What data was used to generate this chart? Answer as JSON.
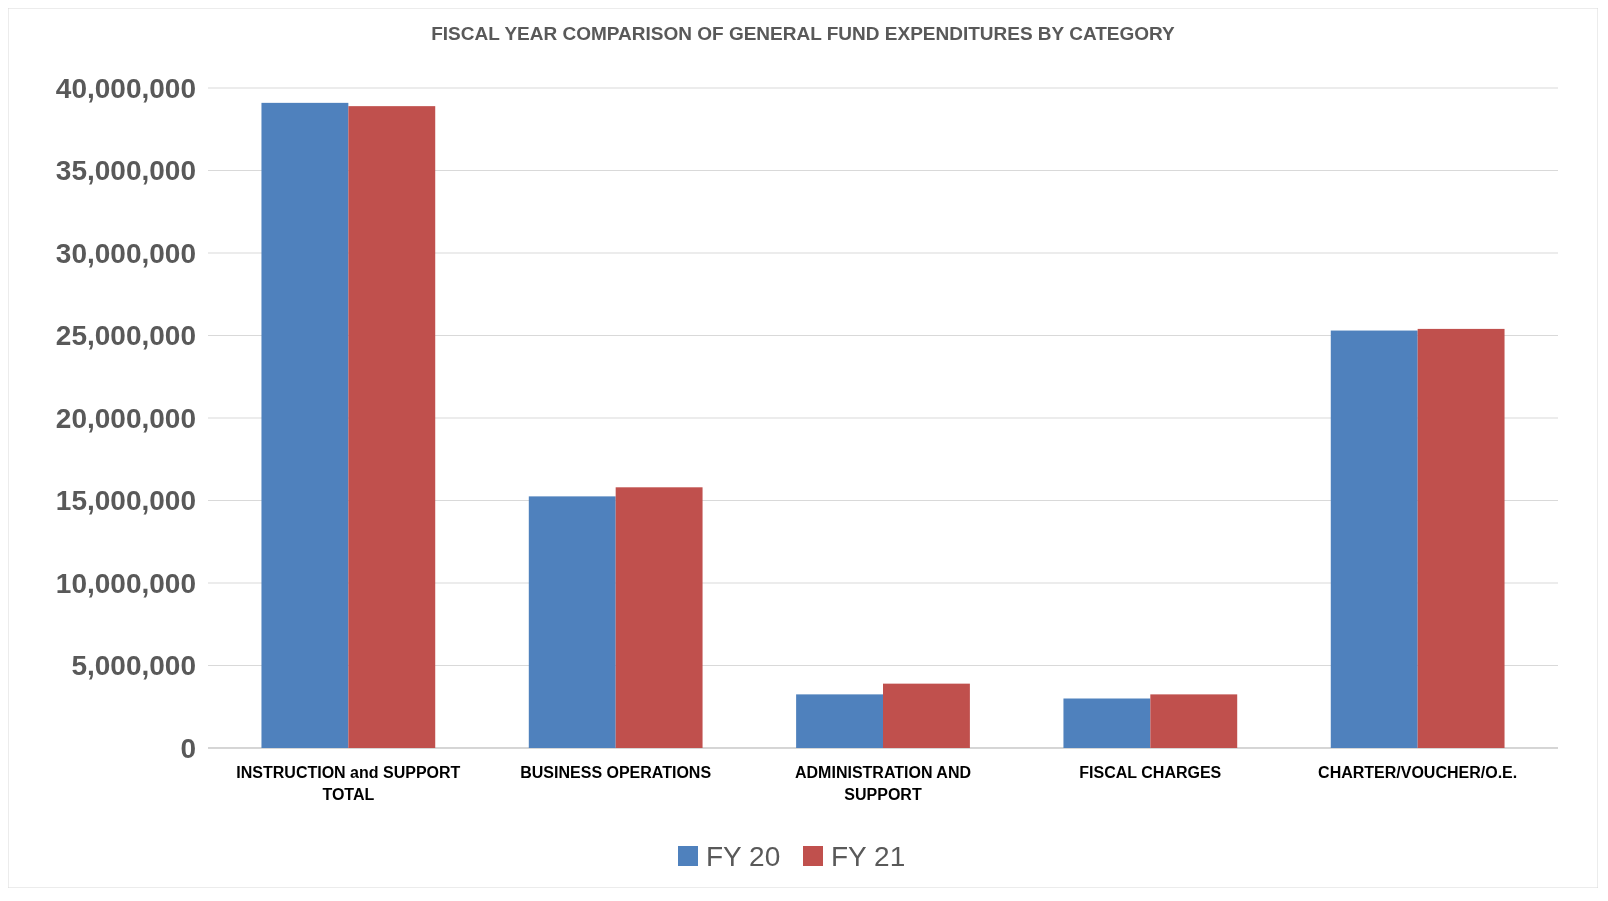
{
  "chart_data": {
    "type": "bar",
    "title": "FISCAL YEAR COMPARISON OF GENERAL FUND EXPENDITURES BY CATEGORY",
    "categories": [
      "INSTRUCTION and SUPPORT TOTAL",
      "BUSINESS OPERATIONS",
      "ADMINISTRATION AND SUPPORT",
      "FISCAL CHARGES",
      "CHARTER/VOUCHER/O.E."
    ],
    "series": [
      {
        "name": "FY 20",
        "color": "#4f81bd",
        "values": [
          39100000,
          15250000,
          3250000,
          3000000,
          25300000
        ]
      },
      {
        "name": "FY 21",
        "color": "#c0504d",
        "values": [
          38900000,
          15800000,
          3900000,
          3250000,
          25400000
        ]
      }
    ],
    "ylim": [
      0,
      40000000
    ],
    "yticks": [
      0,
      {
        "value": 5000000,
        "label": "5,000,000"
      },
      {
        "value": 10000000,
        "label": "10,000,000"
      },
      {
        "value": 15000000,
        "label": "15,000,000"
      },
      {
        "value": 20000000,
        "label": "20,000,000"
      },
      {
        "value": 25000000,
        "label": "25,000,000"
      },
      {
        "value": 30000000,
        "label": "30,000,000"
      },
      {
        "value": 35000000,
        "label": "35,000,000"
      },
      {
        "value": 40000000,
        "label": "40,000,000"
      }
    ],
    "grid": "y",
    "legend": "bottom"
  }
}
